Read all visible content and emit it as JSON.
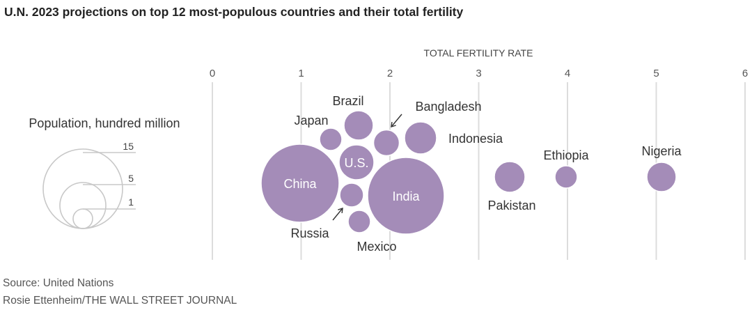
{
  "title": "U.N. 2023 projections on top 12 most-populous countries and their total fertility",
  "chart_data": {
    "type": "scatter",
    "axis_title": "TOTAL FERTILITY RATE",
    "xlim": [
      0,
      6
    ],
    "x_ticks": [
      "0",
      "1",
      "2",
      "3",
      "4",
      "5",
      "6"
    ],
    "grid": true,
    "size_legend": {
      "title": "Population, hundred million",
      "values": [
        "15",
        "5",
        "1"
      ]
    },
    "points": [
      {
        "name": "China",
        "label": "China",
        "fertility": 1.0,
        "population": 14.25
      },
      {
        "name": "India",
        "label": "India",
        "fertility": 2.0,
        "population": 14.29
      },
      {
        "name": "U.S.",
        "label": "U.S.",
        "fertility": 1.6,
        "population": 3.4
      },
      {
        "name": "Indonesia",
        "label": "Indonesia",
        "fertility": 2.1,
        "population": 2.78
      },
      {
        "name": "Pakistan",
        "label": "Pakistan",
        "fertility": 3.3,
        "population": 2.4
      },
      {
        "name": "Nigeria",
        "label": "Nigeria",
        "fertility": 5.1,
        "population": 2.24
      },
      {
        "name": "Brazil",
        "label": "Brazil",
        "fertility": 1.6,
        "population": 2.16
      },
      {
        "name": "Bangladesh",
        "label": "Bangladesh",
        "fertility": 1.9,
        "population": 1.73
      },
      {
        "name": "Russia",
        "label": "Russia",
        "fertility": 1.5,
        "population": 1.44
      },
      {
        "name": "Mexico",
        "label": "Mexico",
        "fertility": 1.8,
        "population": 1.28
      },
      {
        "name": "Ethiopia",
        "label": "Ethiopia",
        "fertility": 4.0,
        "population": 1.27
      },
      {
        "name": "Japan",
        "label": "Japan",
        "fertility": 1.3,
        "population": 1.23
      }
    ],
    "bubble_color": "#a48cb8"
  },
  "footer": {
    "source": "Source: United Nations",
    "credit": "Rosie Ettenheim/THE WALL STREET JOURNAL"
  }
}
